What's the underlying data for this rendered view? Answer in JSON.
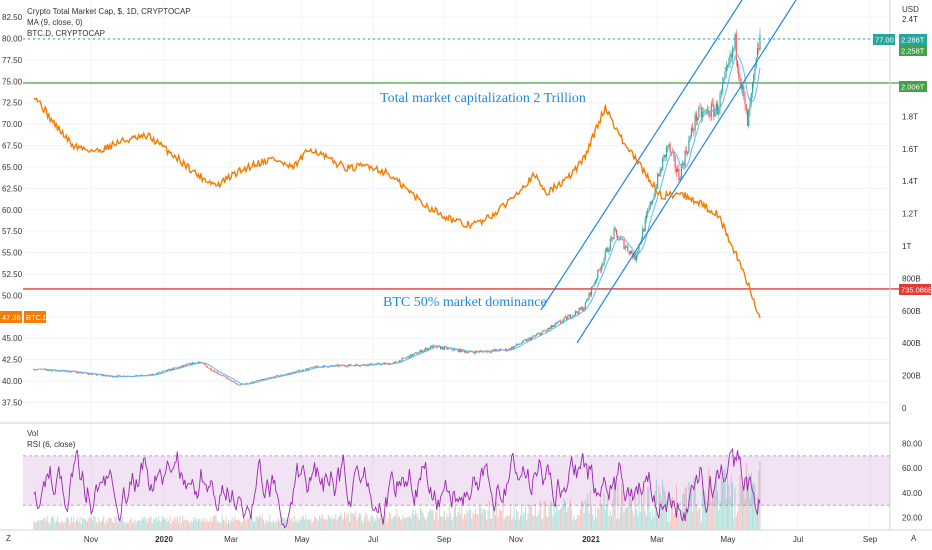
{
  "header": {
    "line1": "Crypto Total Market Cap, $, 1D, CRYPTOCAP",
    "line2": "MA (9, close, 0)",
    "line3": "BTC.D, CRYPTOCAP"
  },
  "currency_label": "USD",
  "corner_z": "Z",
  "corner_a": "A",
  "annotations": {
    "total_cap": "Total market capitalization 2 Trillion",
    "btc_dom": "BTC 50% market dominance"
  },
  "tags": {
    "left_btc_value": "47.36",
    "left_btc_name": "BTC.D",
    "right_total_cap_line": "2.006T",
    "right_btc_line": "735.086B",
    "right_current_1": "77.00",
    "right_current_2": "2.286T",
    "right_current_3": "2.258T"
  },
  "colors": {
    "btc_dominance": "#f57c00",
    "candle_up": "#26a69a",
    "candle_down": "#ef5350",
    "ma": "#64b5f6",
    "channel": "#1e88e5",
    "level_2t": "#43a047",
    "level_50": "#e53935",
    "rsi": "#9c27b0",
    "rsi_band": "#e1bee7"
  },
  "lower_pane": {
    "title1": "Vol",
    "title2": "RSI (6, close)",
    "y_ticks": [
      "80.00",
      "60.00",
      "40.00",
      "20.00"
    ]
  },
  "chart_data": {
    "type": "line",
    "x_ticks": [
      "Nov",
      "2020",
      "Mar",
      "May",
      "Jul",
      "Sep",
      "Nov",
      "2021",
      "Mar",
      "May",
      "Jul",
      "Sep"
    ],
    "left_axis": {
      "ticks": [
        "82.50",
        "80.00",
        "77.50",
        "75.00",
        "72.50",
        "70.00",
        "67.50",
        "65.00",
        "62.50",
        "60.00",
        "57.50",
        "55.00",
        "52.50",
        "50.00",
        "47.50",
        "45.00",
        "42.50",
        "40.00",
        "37.50"
      ],
      "range": [
        36,
        83.5
      ]
    },
    "right_axis": {
      "ticks": [
        "2.4T",
        "2.2T",
        "2T",
        "1.8T",
        "1.6T",
        "1.4T",
        "1.2T",
        "1T",
        "800B",
        "600B",
        "400B",
        "200B",
        "0"
      ]
    },
    "series": [
      {
        "name": "BTC.D, CRYPTOCAP",
        "axis": "left",
        "points": [
          [
            "2019-10-01",
            73.5
          ],
          [
            "2019-10-15",
            70.5
          ],
          [
            "2019-11-01",
            67.5
          ],
          [
            "2019-11-20",
            66.8
          ],
          [
            "2019-12-10",
            68.0
          ],
          [
            "2020-01-01",
            68.6
          ],
          [
            "2020-01-20",
            66.5
          ],
          [
            "2020-02-10",
            64.0
          ],
          [
            "2020-02-25",
            62.8
          ],
          [
            "2020-03-10",
            64.2
          ],
          [
            "2020-03-25",
            65.3
          ],
          [
            "2020-04-10",
            66.0
          ],
          [
            "2020-04-25",
            64.8
          ],
          [
            "2020-05-10",
            67.2
          ],
          [
            "2020-05-25",
            65.8
          ],
          [
            "2020-06-10",
            64.8
          ],
          [
            "2020-06-25",
            65.2
          ],
          [
            "2020-07-10",
            64.3
          ],
          [
            "2020-07-25",
            62.5
          ],
          [
            "2020-08-10",
            60.5
          ],
          [
            "2020-08-25",
            59.3
          ],
          [
            "2020-09-10",
            58.2
          ],
          [
            "2020-09-25",
            58.6
          ],
          [
            "2020-10-10",
            60.2
          ],
          [
            "2020-10-25",
            62.5
          ],
          [
            "2020-11-05",
            64.0
          ],
          [
            "2020-11-15",
            62.0
          ],
          [
            "2020-12-01",
            63.5
          ],
          [
            "2020-12-15",
            66.0
          ],
          [
            "2021-01-01",
            72.0
          ],
          [
            "2021-01-15",
            68.0
          ],
          [
            "2021-02-01",
            64.5
          ],
          [
            "2021-02-15",
            61.5
          ],
          [
            "2021-03-01",
            62.0
          ],
          [
            "2021-03-15",
            61.0
          ],
          [
            "2021-04-01",
            59.5
          ],
          [
            "2021-04-15",
            55.0
          ],
          [
            "2021-04-25",
            51.5
          ],
          [
            "2021-05-05",
            47.36
          ]
        ]
      },
      {
        "name": "Crypto Total Market Cap",
        "axis": "right",
        "unit": "USD",
        "points": [
          [
            "2019-10-01",
            240
          ],
          [
            "2019-11-01",
            225
          ],
          [
            "2019-12-01",
            195
          ],
          [
            "2020-01-01",
            200
          ],
          [
            "2020-02-10",
            285
          ],
          [
            "2020-03-13",
            140
          ],
          [
            "2020-04-15",
            200
          ],
          [
            "2020-05-15",
            255
          ],
          [
            "2020-06-15",
            265
          ],
          [
            "2020-07-15",
            275
          ],
          [
            "2020-08-15",
            380
          ],
          [
            "2020-09-15",
            345
          ],
          [
            "2020-10-15",
            360
          ],
          [
            "2020-11-15",
            480
          ],
          [
            "2020-12-15",
            620
          ],
          [
            "2021-01-08",
            1080
          ],
          [
            "2021-01-25",
            930
          ],
          [
            "2021-02-20",
            1620
          ],
          [
            "2021-03-01",
            1430
          ],
          [
            "2021-03-15",
            1800
          ],
          [
            "2021-04-01",
            1850
          ],
          [
            "2021-04-15",
            2250
          ],
          [
            "2021-04-25",
            1750
          ],
          [
            "2021-05-05",
            2286
          ]
        ]
      }
    ],
    "horizontal_levels": [
      {
        "axis": "right",
        "value": 2006,
        "label": "2.006T"
      },
      {
        "axis": "right",
        "value": 735.086,
        "label": "735.086B"
      }
    ],
    "rsi": {
      "name": "RSI (6, close)",
      "band": [
        30,
        70
      ],
      "range": [
        10,
        95
      ]
    }
  }
}
